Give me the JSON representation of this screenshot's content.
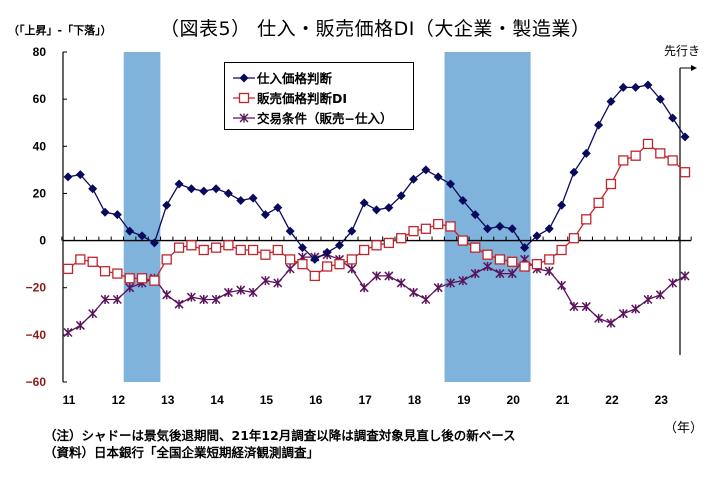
{
  "header": {
    "title": "（図表5） 仕入・販売価格DI（大企業・製造業）",
    "unit_label": "（「上昇」-「下落」）",
    "forecast_label": "先行き",
    "x_unit_label": "（年）"
  },
  "notes": {
    "note": "（注）シャドーは景気後退期間、21年12月調査以降は調査対象見直し後の新ベース",
    "source": "（資料）日本銀行「全国企業短期経済観測調査」"
  },
  "colors": {
    "input_price": "#0a0a5c",
    "output_price": "#c0272d",
    "terms_of_trade": "#5a145c",
    "shade": "#7fb3dc",
    "negative_tick": "#8b1a1a"
  },
  "chart_data": {
    "type": "line",
    "title": "（図表5） 仕入・販売価格DI（大企業・製造業）",
    "xlabel": "（年）",
    "ylabel": "（「上昇」-「下落」）",
    "ylim": [
      -60,
      80
    ],
    "yticks": [
      80,
      60,
      40,
      20,
      0,
      -20,
      -40,
      -60
    ],
    "xticks": [
      "11",
      "12",
      "13",
      "14",
      "15",
      "16",
      "17",
      "18",
      "19",
      "20",
      "21",
      "22",
      "23"
    ],
    "frequency": "quarterly, starting 2011 Q1; last point is forecast",
    "forecast_marker": "先行き",
    "legend_position": "top-center",
    "recession_shading": [
      {
        "start": "2012 Q2",
        "end": "2012 Q4"
      },
      {
        "start": "2018 Q4",
        "end": "2020 Q2"
      }
    ],
    "series": [
      {
        "name": "仕入価格判断",
        "marker": "diamond",
        "values": [
          27,
          28,
          22,
          12,
          11,
          4,
          2,
          -1,
          15,
          24,
          22,
          21,
          22,
          20,
          17,
          18,
          11,
          14,
          4,
          -3,
          -8,
          -5,
          -2,
          4,
          16,
          13,
          14,
          19,
          26,
          30,
          27,
          24,
          17,
          11,
          5,
          6,
          5,
          -3,
          2,
          5,
          15,
          29,
          37,
          49,
          59,
          65,
          65,
          66,
          60,
          52,
          44
        ]
      },
      {
        "name": "販売価格判断DI",
        "marker": "square",
        "values": [
          -12,
          -8,
          -9,
          -13,
          -14,
          -16,
          -16,
          -17,
          -8,
          -3,
          -2,
          -4,
          -3,
          -2,
          -4,
          -4,
          -6,
          -4,
          -8,
          -10,
          -15,
          -11,
          -10,
          -8,
          -4,
          -2,
          -1,
          1,
          4,
          5,
          7,
          6,
          0,
          -3,
          -6,
          -8,
          -9,
          -11,
          -10,
          -8,
          -4,
          1,
          9,
          16,
          24,
          34,
          36,
          41,
          37,
          34,
          29
        ]
      },
      {
        "name": "交易条件（販売−仕入）",
        "marker": "asterisk",
        "values": [
          -39,
          -36,
          -31,
          -25,
          -25,
          -20,
          -18,
          -16,
          -23,
          -27,
          -24,
          -25,
          -25,
          -22,
          -21,
          -22,
          -17,
          -18,
          -12,
          -7,
          -7,
          -6,
          -8,
          -12,
          -20,
          -15,
          -15,
          -18,
          -22,
          -25,
          -20,
          -18,
          -17,
          -14,
          -11,
          -14,
          -14,
          -8,
          -12,
          -13,
          -19,
          -28,
          -28,
          -33,
          -35,
          -31,
          -29,
          -25,
          -23,
          -18,
          -15
        ]
      }
    ]
  }
}
